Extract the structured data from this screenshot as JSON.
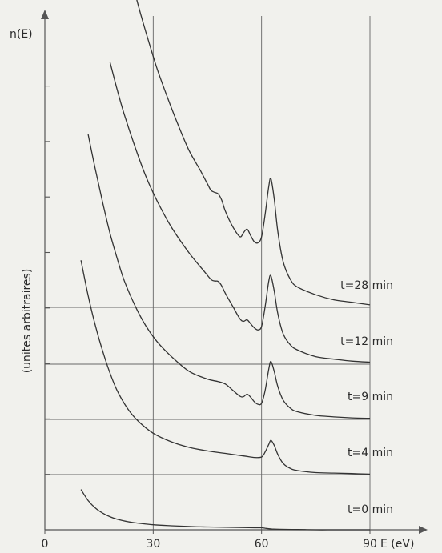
{
  "chart_data": {
    "type": "line",
    "ylabel": "n(E)",
    "ylabel_note": "(unites arbitraires)",
    "xlabel": "E (eV)",
    "xlim": [
      0,
      90
    ],
    "grid": true,
    "xticks": [
      "0",
      "30",
      "60",
      "90"
    ],
    "series": [
      {
        "name": "t=0 min",
        "x": [
          10,
          12,
          14,
          16,
          18,
          20,
          23,
          26,
          30,
          35,
          40,
          45,
          50,
          55,
          58,
          59,
          60,
          61,
          62,
          63,
          65,
          70,
          75,
          80,
          85,
          90
        ],
        "values": [
          0.8,
          0.58,
          0.43,
          0.33,
          0.26,
          0.21,
          0.16,
          0.13,
          0.1,
          0.08,
          0.065,
          0.055,
          0.05,
          0.045,
          0.04,
          0.04,
          0.04,
          0.03,
          0.02,
          0.015,
          0.01,
          0.005,
          0,
          0,
          0,
          0
        ]
      },
      {
        "name": "t=4 min",
        "x": [
          10,
          12,
          14,
          16,
          18,
          20,
          23,
          26,
          30,
          35,
          40,
          45,
          50,
          55,
          58,
          60,
          61,
          62,
          62.6,
          63.5,
          64.5,
          66,
          68,
          70,
          75,
          80,
          85,
          90
        ],
        "values": [
          4.25,
          3.55,
          2.95,
          2.45,
          2.02,
          1.67,
          1.3,
          1.05,
          0.82,
          0.65,
          0.54,
          0.47,
          0.42,
          0.37,
          0.34,
          0.35,
          0.45,
          0.6,
          0.68,
          0.58,
          0.4,
          0.22,
          0.12,
          0.08,
          0.04,
          0.03,
          0.02,
          0.01
        ]
      },
      {
        "name": "t=9 min",
        "x": [
          12,
          14,
          16,
          18,
          20,
          22,
          25,
          28,
          31,
          35,
          40,
          45,
          48,
          50,
          52,
          54,
          55,
          56,
          57,
          58,
          59,
          60,
          61,
          62,
          62.6,
          63.5,
          64.5,
          66,
          68,
          70,
          75,
          80,
          85,
          90
        ],
        "values": [
          5.65,
          4.95,
          4.3,
          3.7,
          3.2,
          2.75,
          2.25,
          1.85,
          1.55,
          1.25,
          0.95,
          0.8,
          0.75,
          0.7,
          0.58,
          0.46,
          0.45,
          0.5,
          0.44,
          0.35,
          0.3,
          0.32,
          0.58,
          1.0,
          1.15,
          0.95,
          0.65,
          0.38,
          0.22,
          0.15,
          0.08,
          0.05,
          0.03,
          0.02
        ]
      },
      {
        "name": "t=12 min",
        "x": [
          18,
          20,
          22,
          25,
          28,
          31,
          35,
          40,
          44,
          46,
          47,
          48,
          49,
          50,
          52,
          54,
          55,
          56,
          57,
          58,
          59,
          60,
          61,
          62,
          62.6,
          63.5,
          64.5,
          66,
          68,
          70,
          75,
          80,
          85,
          90
        ],
        "values": [
          6.0,
          5.45,
          4.95,
          4.3,
          3.72,
          3.25,
          2.72,
          2.2,
          1.85,
          1.68,
          1.65,
          1.64,
          1.55,
          1.4,
          1.15,
          0.9,
          0.85,
          0.88,
          0.8,
          0.72,
          0.68,
          0.75,
          1.15,
          1.65,
          1.75,
          1.45,
          1.0,
          0.6,
          0.38,
          0.28,
          0.15,
          0.1,
          0.06,
          0.04
        ]
      },
      {
        "name": "t=28 min",
        "x": [
          24,
          26,
          28,
          31,
          34,
          37,
          40,
          43,
          45,
          46,
          47,
          48,
          49,
          50,
          52,
          54,
          55,
          56,
          57,
          58,
          59,
          60,
          61,
          62,
          62.6,
          63.5,
          64.5,
          66,
          68,
          70,
          75,
          80,
          85,
          90
        ],
        "values": [
          6.5,
          5.95,
          5.45,
          4.75,
          4.15,
          3.6,
          3.1,
          2.72,
          2.45,
          2.32,
          2.28,
          2.25,
          2.12,
          1.9,
          1.6,
          1.4,
          1.48,
          1.55,
          1.42,
          1.3,
          1.28,
          1.4,
          1.85,
          2.4,
          2.55,
          2.15,
          1.5,
          0.9,
          0.55,
          0.4,
          0.25,
          0.15,
          0.1,
          0.05
        ]
      }
    ]
  }
}
